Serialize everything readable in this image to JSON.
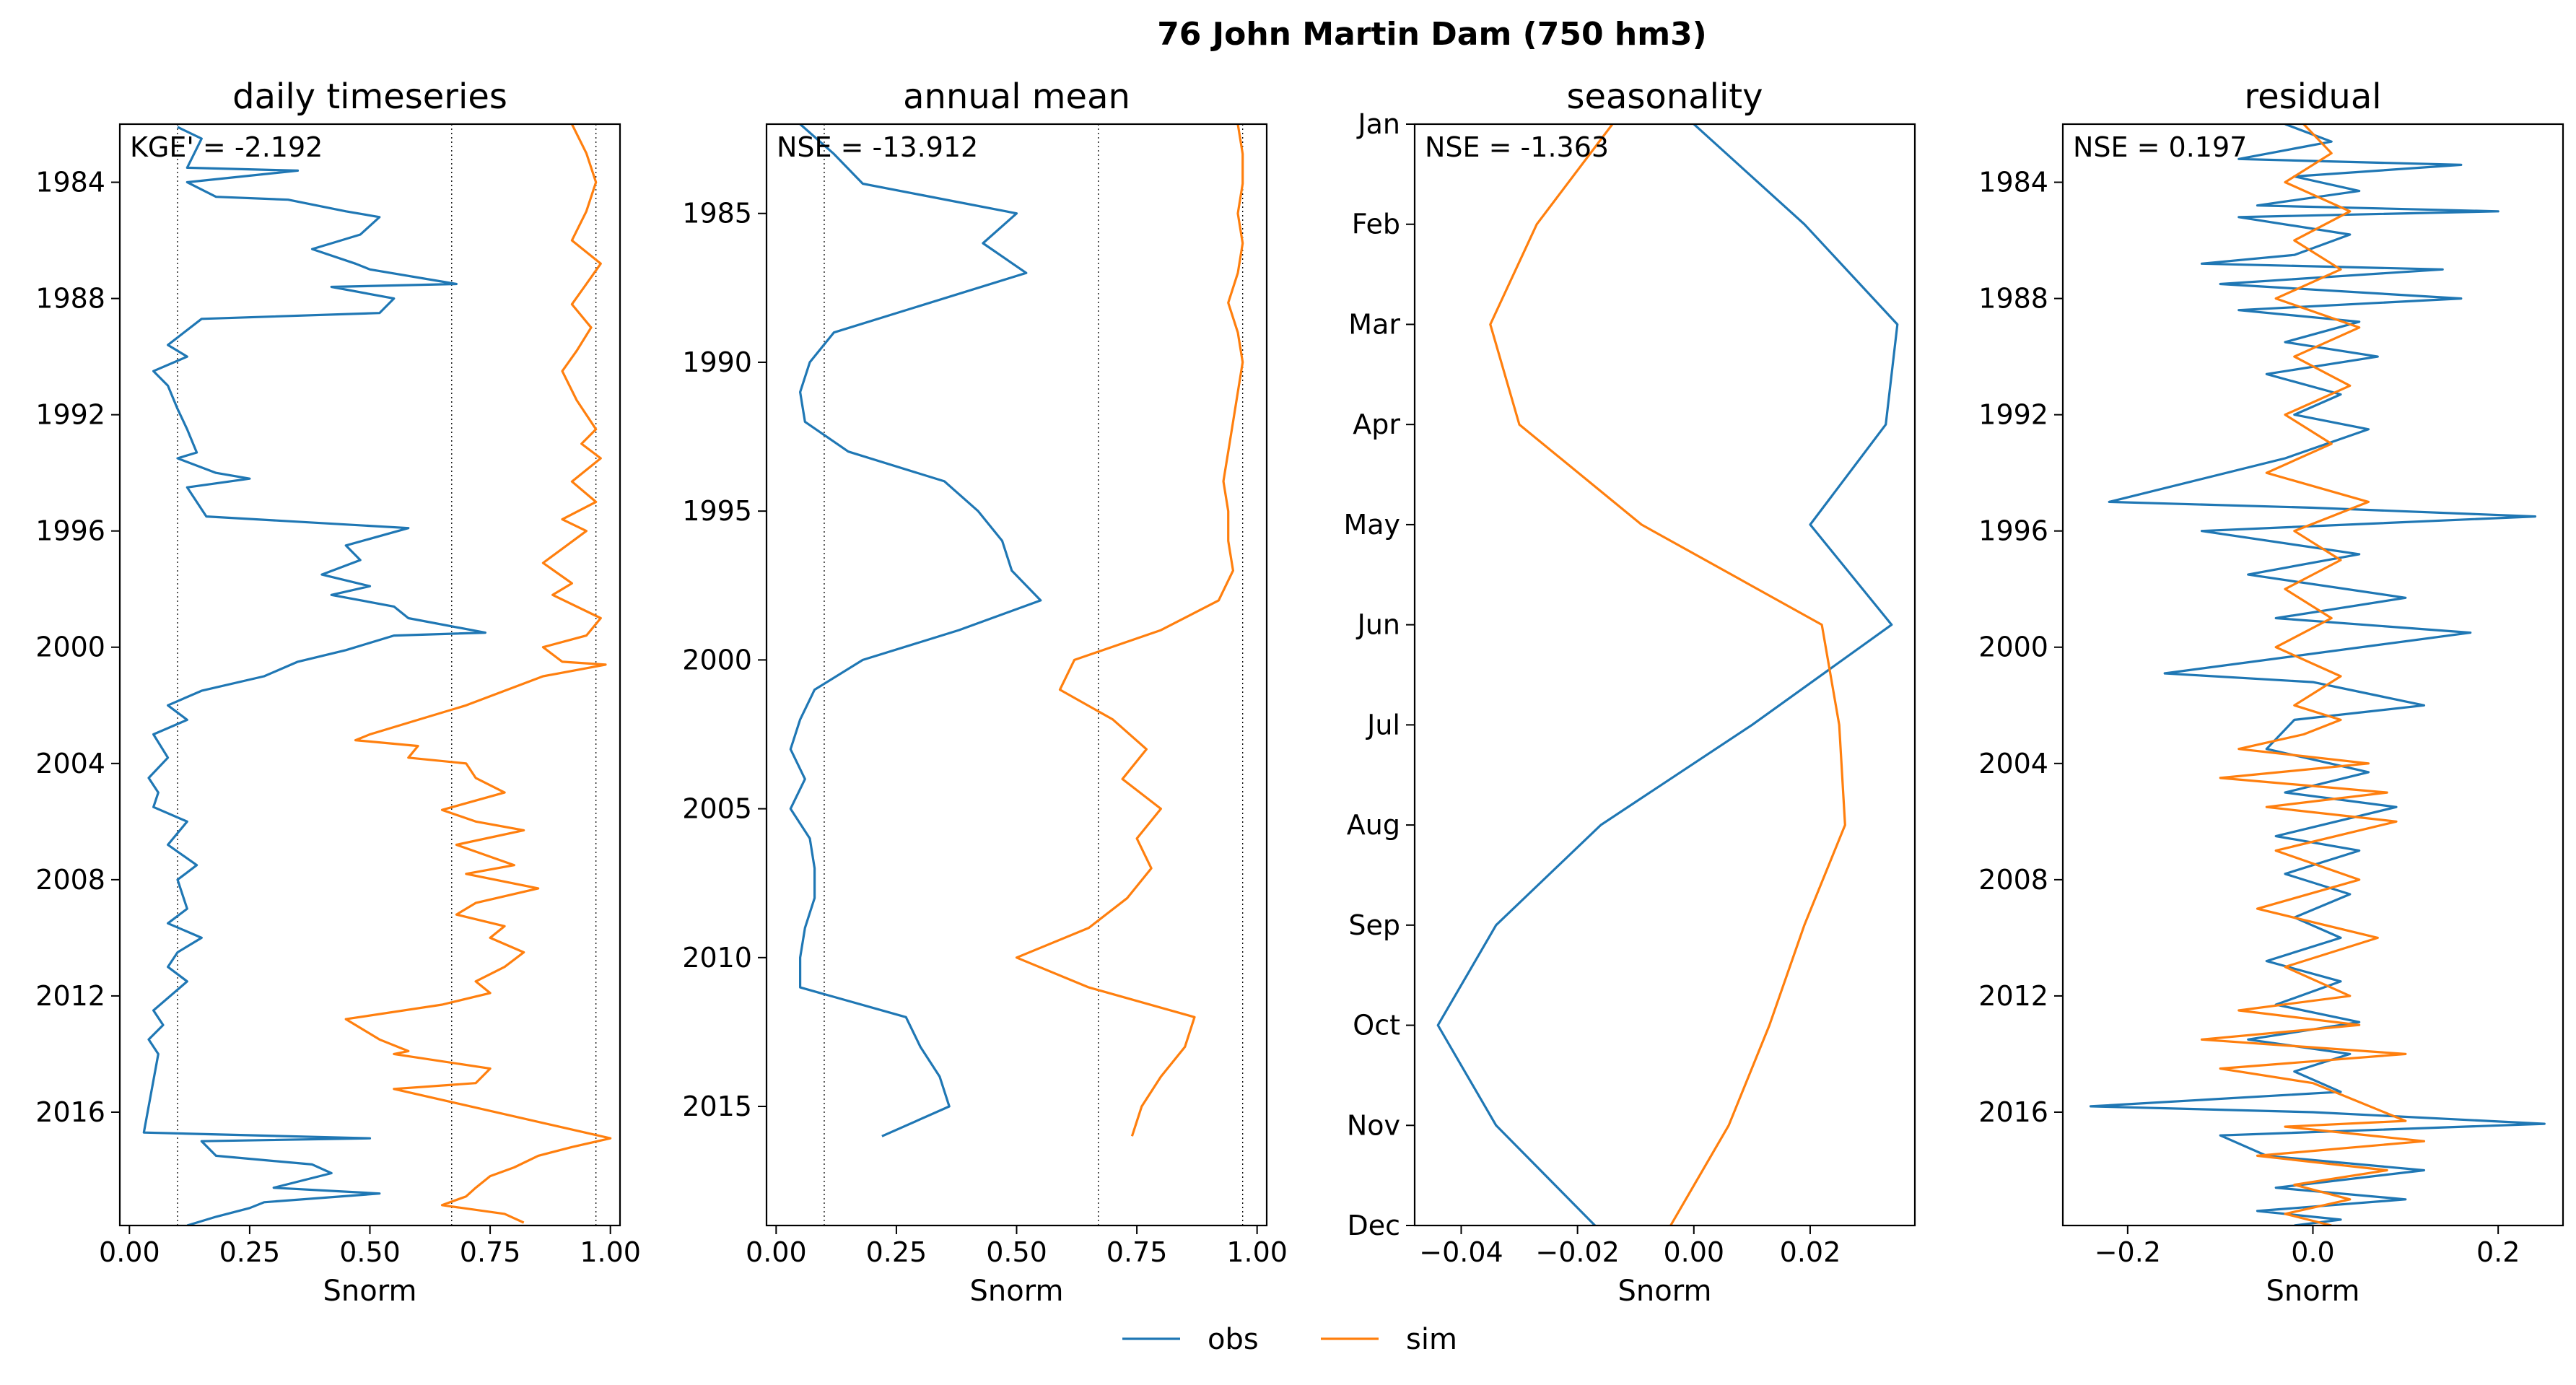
{
  "figure": {
    "suptitle": "76  John Martin Dam (750 hm3)"
  },
  "colors": {
    "obs": "#1f77b4",
    "sim": "#ff7f0e"
  },
  "legend": {
    "placement": "bottom-center",
    "entries": [
      {
        "label": "obs",
        "color": "#1f77b4"
      },
      {
        "label": "sim",
        "color": "#ff7f0e"
      }
    ]
  },
  "chart_data": [
    {
      "type": "line",
      "title": "daily timeseries",
      "xlabel": "Snorm",
      "annotation": "KGE' = -2.192",
      "xlim": [
        -0.02,
        1.02
      ],
      "ylim": [
        1982.0,
        2019.9
      ],
      "y_reversed": true,
      "xticks": [
        0.0,
        0.25,
        0.5,
        0.75,
        1.0
      ],
      "xtick_labels": [
        "0.00",
        "0.25",
        "0.50",
        "0.75",
        "1.00"
      ],
      "yticks": [
        1984,
        1988,
        1992,
        1996,
        2000,
        2004,
        2008,
        2012,
        2016
      ],
      "ytick_labels": [
        "1984",
        "1988",
        "1992",
        "1996",
        "2000",
        "2004",
        "2008",
        "2012",
        "2016"
      ],
      "vlines": [
        0.1,
        0.67,
        0.97
      ],
      "series": [
        {
          "name": "obs",
          "color": "#1f77b4",
          "x": [
            0.1,
            0.15,
            0.12,
            0.35,
            0.12,
            0.18,
            0.33,
            0.45,
            0.52,
            0.48,
            0.42,
            0.38,
            0.47,
            0.5,
            0.68,
            0.42,
            0.55,
            0.52,
            0.15,
            0.08,
            0.12,
            0.05,
            0.08,
            0.1,
            0.12,
            0.14,
            0.1,
            0.18,
            0.25,
            0.12,
            0.16,
            0.58,
            0.45,
            0.48,
            0.4,
            0.5,
            0.42,
            0.55,
            0.58,
            0.74,
            0.55,
            0.45,
            0.35,
            0.28,
            0.15,
            0.08,
            0.12,
            0.05,
            0.08,
            0.04,
            0.06,
            0.05,
            0.12,
            0.08,
            0.14,
            0.1,
            0.12,
            0.08,
            0.15,
            0.1,
            0.08,
            0.12,
            0.05,
            0.07,
            0.04,
            0.06,
            0.03,
            0.5,
            0.15,
            0.18,
            0.38,
            0.42,
            0.3,
            0.52,
            0.28,
            0.25,
            0.18,
            0.12
          ],
          "y": [
            1982.1,
            1982.5,
            1983.5,
            1983.6,
            1984.0,
            1984.5,
            1984.6,
            1985.0,
            1985.2,
            1985.8,
            1986.1,
            1986.3,
            1986.8,
            1987.0,
            1987.5,
            1987.6,
            1988.0,
            1988.5,
            1988.7,
            1989.6,
            1990.0,
            1990.5,
            1991.0,
            1991.8,
            1992.5,
            1993.3,
            1993.5,
            1994.0,
            1994.2,
            1994.5,
            1995.5,
            1995.9,
            1996.5,
            1997.0,
            1997.5,
            1997.9,
            1998.2,
            1998.6,
            1999.0,
            1999.5,
            1999.6,
            2000.1,
            2000.5,
            2001.0,
            2001.5,
            2002.0,
            2002.5,
            2003.0,
            2003.8,
            2004.5,
            2005.0,
            2005.5,
            2006.0,
            2006.8,
            2007.5,
            2008.0,
            2009.0,
            2009.5,
            2010.0,
            2010.5,
            2011.0,
            2011.5,
            2012.5,
            2013.0,
            2013.5,
            2014.0,
            2016.7,
            2016.9,
            2017.0,
            2017.5,
            2017.8,
            2018.1,
            2018.6,
            2018.8,
            2019.1,
            2019.3,
            2019.6,
            2019.9
          ]
        },
        {
          "name": "sim",
          "color": "#ff7f0e",
          "x": [
            0.92,
            0.95,
            0.97,
            0.95,
            0.92,
            0.98,
            0.95,
            0.92,
            0.96,
            0.93,
            0.9,
            0.93,
            0.97,
            0.94,
            0.98,
            0.92,
            0.97,
            0.9,
            0.95,
            0.86,
            0.92,
            0.88,
            0.98,
            0.95,
            0.86,
            0.9,
            0.99,
            0.86,
            0.78,
            0.7,
            0.6,
            0.5,
            0.47,
            0.6,
            0.58,
            0.7,
            0.72,
            0.78,
            0.65,
            0.72,
            0.82,
            0.68,
            0.8,
            0.7,
            0.85,
            0.72,
            0.68,
            0.78,
            0.75,
            0.82,
            0.78,
            0.72,
            0.75,
            0.65,
            0.45,
            0.52,
            0.58,
            0.55,
            0.75,
            0.72,
            0.55,
            1.0,
            0.92,
            0.85,
            0.8,
            0.75,
            0.72,
            0.7,
            0.65,
            0.78,
            0.82
          ],
          "y": [
            1982.0,
            1983.0,
            1984.0,
            1985.0,
            1986.0,
            1986.8,
            1987.5,
            1988.2,
            1989.0,
            1989.8,
            1990.5,
            1991.5,
            1992.5,
            1993.0,
            1993.5,
            1994.3,
            1995.0,
            1995.6,
            1996.0,
            1997.1,
            1997.8,
            1998.2,
            1999.0,
            1999.6,
            2000.0,
            2000.5,
            2000.6,
            2001.0,
            2001.5,
            2002.0,
            2002.5,
            2003.0,
            2003.2,
            2003.4,
            2003.8,
            2004.0,
            2004.5,
            2005.0,
            2005.6,
            2006.0,
            2006.3,
            2006.8,
            2007.5,
            2007.8,
            2008.3,
            2008.8,
            2009.2,
            2009.6,
            2010.0,
            2010.5,
            2011.0,
            2011.5,
            2011.9,
            2012.3,
            2012.8,
            2013.5,
            2013.9,
            2014.0,
            2014.5,
            2015.0,
            2015.2,
            2016.9,
            2017.2,
            2017.5,
            2017.9,
            2018.2,
            2018.6,
            2018.9,
            2019.2,
            2019.5,
            2019.8
          ]
        }
      ]
    },
    {
      "type": "line",
      "title": "annual mean",
      "xlabel": "Snorm",
      "annotation": "NSE = -13.912",
      "xlim": [
        -0.02,
        1.02
      ],
      "ylim": [
        1982.0,
        2019.0
      ],
      "y_reversed": true,
      "xticks": [
        0.0,
        0.25,
        0.5,
        0.75,
        1.0
      ],
      "xtick_labels": [
        "0.00",
        "0.25",
        "0.50",
        "0.75",
        "1.00"
      ],
      "yticks": [
        1985,
        1990,
        1995,
        2000,
        2005,
        2010,
        2015
      ],
      "ytick_labels": [
        "1985",
        "1990",
        "1995",
        "2000",
        "2005",
        "2010",
        "2015"
      ],
      "vlines": [
        0.1,
        0.67,
        0.97
      ],
      "series": [
        {
          "name": "obs",
          "color": "#1f77b4",
          "x": [
            0.05,
            0.12,
            0.18,
            0.5,
            0.43,
            0.52,
            0.12,
            0.07,
            0.05,
            0.06,
            0.15,
            0.35,
            0.42,
            0.47,
            0.49,
            0.55,
            0.38,
            0.18,
            0.08,
            0.05,
            0.03,
            0.06,
            0.03,
            0.07,
            0.08,
            0.08,
            0.06,
            0.05,
            0.05,
            0.27,
            0.3,
            0.34,
            0.36,
            0.22
          ],
          "y": [
            1982.0,
            1983.0,
            1984.0,
            1985.0,
            1986.0,
            1987.0,
            1989.0,
            1990.0,
            1991.0,
            1992.0,
            1993.0,
            1994.0,
            1995.0,
            1996.0,
            1997.0,
            1998.0,
            1999.0,
            2000.0,
            2001.0,
            2002.0,
            2003.0,
            2004.0,
            2005.0,
            2006.0,
            2007.0,
            2008.0,
            2009.0,
            2010.0,
            2011.0,
            2012.0,
            2013.0,
            2014.0,
            2015.0,
            2016.0
          ]
        },
        {
          "name": "sim",
          "color": "#ff7f0e",
          "x": [
            0.96,
            0.97,
            0.97,
            0.96,
            0.97,
            0.96,
            0.94,
            0.96,
            0.97,
            0.96,
            0.95,
            0.94,
            0.93,
            0.94,
            0.94,
            0.95,
            0.92,
            0.8,
            0.62,
            0.59,
            0.7,
            0.77,
            0.72,
            0.8,
            0.75,
            0.78,
            0.73,
            0.65,
            0.5,
            0.65,
            0.87,
            0.85,
            0.8,
            0.76,
            0.74
          ],
          "y": [
            1982.0,
            1983.0,
            1984.0,
            1985.0,
            1986.0,
            1987.0,
            1988.0,
            1989.0,
            1990.0,
            1991.0,
            1992.0,
            1993.0,
            1994.0,
            1995.0,
            1996.0,
            1997.0,
            1998.0,
            1999.0,
            2000.0,
            2001.0,
            2002.0,
            2003.0,
            2004.0,
            2005.0,
            2006.0,
            2007.0,
            2008.0,
            2009.0,
            2010.0,
            2011.0,
            2012.0,
            2013.0,
            2014.0,
            2015.0,
            2016.0
          ]
        }
      ]
    },
    {
      "type": "line",
      "title": "seasonality",
      "xlabel": "Snorm",
      "annotation": "NSE = -1.363",
      "xlim": [
        -0.048,
        0.038
      ],
      "ylim": [
        1,
        12
      ],
      "y_reversed": true,
      "xticks": [
        -0.04,
        -0.02,
        0.0,
        0.02
      ],
      "xtick_labels": [
        "−0.04",
        "−0.02",
        "0.00",
        "0.02"
      ],
      "yticks": [
        1,
        2,
        3,
        4,
        5,
        6,
        7,
        8,
        9,
        10,
        11,
        12
      ],
      "ytick_labels": [
        "Jan",
        "Feb",
        "Mar",
        "Apr",
        "May",
        "Jun",
        "Jul",
        "Aug",
        "Sep",
        "Oct",
        "Nov",
        "Dec"
      ],
      "vlines": [],
      "series": [
        {
          "name": "obs",
          "color": "#1f77b4",
          "x": [
            0.0,
            0.019,
            0.035,
            0.033,
            0.02,
            0.034,
            0.01,
            -0.016,
            -0.034,
            -0.044,
            -0.034,
            -0.017
          ],
          "y": [
            1,
            2,
            3,
            4,
            5,
            6,
            7,
            8,
            9,
            10,
            11,
            12
          ]
        },
        {
          "name": "sim",
          "color": "#ff7f0e",
          "x": [
            -0.014,
            -0.027,
            -0.035,
            -0.03,
            -0.009,
            0.022,
            0.025,
            0.026,
            0.019,
            0.013,
            0.006,
            -0.004
          ],
          "y": [
            1,
            2,
            3,
            4,
            5,
            6,
            7,
            8,
            9,
            10,
            11,
            12
          ]
        }
      ]
    },
    {
      "type": "line",
      "title": "residual",
      "xlabel": "Snorm",
      "annotation": "NSE = 0.197",
      "xlim": [
        -0.27,
        0.27
      ],
      "ylim": [
        1982.0,
        2019.9
      ],
      "y_reversed": true,
      "xticks": [
        -0.2,
        0.0,
        0.2
      ],
      "xtick_labels": [
        "−0.2",
        "0.0",
        "0.2"
      ],
      "yticks": [
        1984,
        1988,
        1992,
        1996,
        2000,
        2004,
        2008,
        2012,
        2016
      ],
      "ytick_labels": [
        "1984",
        "1988",
        "1992",
        "1996",
        "2000",
        "2004",
        "2008",
        "2012",
        "2016"
      ],
      "vlines": [],
      "series": [
        {
          "name": "obs",
          "color": "#1f77b4",
          "x": [
            -0.03,
            0.02,
            -0.08,
            0.16,
            -0.02,
            0.05,
            -0.06,
            0.2,
            -0.08,
            0.04,
            -0.02,
            -0.12,
            0.14,
            -0.1,
            0.16,
            -0.08,
            0.05,
            -0.03,
            0.07,
            -0.05,
            0.03,
            -0.02,
            0.06,
            -0.03,
            -0.22,
            0.0,
            0.24,
            -0.12,
            0.05,
            -0.07,
            0.1,
            -0.04,
            0.17,
            -0.16,
            0.0,
            0.12,
            -0.02,
            -0.05,
            0.06,
            -0.03,
            0.09,
            -0.04,
            0.05,
            -0.03,
            0.04,
            -0.02,
            0.03,
            -0.05,
            0.03,
            -0.04,
            0.05,
            -0.07,
            0.04,
            -0.02,
            0.03,
            -0.24,
            0.0,
            0.25,
            -0.1,
            -0.05,
            0.12,
            -0.04,
            0.1,
            -0.06,
            0.03,
            -0.02
          ],
          "y": [
            1982.0,
            1982.6,
            1983.2,
            1983.4,
            1983.8,
            1984.3,
            1984.8,
            1985.0,
            1985.2,
            1985.8,
            1986.5,
            1986.8,
            1987.0,
            1987.5,
            1988.0,
            1988.4,
            1988.8,
            1989.5,
            1990.0,
            1990.6,
            1991.3,
            1992.0,
            1992.5,
            1993.5,
            1995.0,
            1995.2,
            1995.5,
            1996.0,
            1996.8,
            1997.5,
            1998.3,
            1999.0,
            1999.5,
            2000.9,
            2001.2,
            2002.0,
            2002.5,
            2003.5,
            2004.3,
            2005.0,
            2005.5,
            2006.5,
            2007.0,
            2007.8,
            2008.5,
            2009.3,
            2010.0,
            2010.8,
            2011.5,
            2012.3,
            2012.9,
            2013.5,
            2014.0,
            2014.6,
            2015.3,
            2015.8,
            2016.0,
            2016.4,
            2016.8,
            2017.5,
            2018.0,
            2018.6,
            2019.0,
            2019.4,
            2019.7,
            2019.9
          ]
        },
        {
          "name": "sim",
          "color": "#ff7f0e",
          "x": [
            -0.01,
            0.02,
            -0.03,
            0.04,
            -0.02,
            0.03,
            -0.04,
            0.05,
            -0.02,
            0.04,
            -0.03,
            0.02,
            -0.05,
            0.06,
            -0.02,
            0.03,
            -0.03,
            0.02,
            -0.04,
            0.03,
            -0.02,
            0.03,
            -0.01,
            -0.08,
            0.06,
            -0.1,
            0.08,
            -0.05,
            0.09,
            -0.04,
            0.05,
            -0.06,
            0.07,
            -0.03,
            0.04,
            -0.08,
            0.05,
            -0.12,
            0.1,
            -0.1,
            0.0,
            0.1,
            -0.03,
            0.12,
            -0.06,
            0.08,
            -0.02,
            0.04,
            -0.03,
            0.02
          ],
          "y": [
            1982.0,
            1983.0,
            1984.0,
            1985.0,
            1986.0,
            1987.0,
            1988.0,
            1989.0,
            1990.0,
            1991.0,
            1992.0,
            1993.0,
            1994.0,
            1995.0,
            1996.0,
            1997.0,
            1998.0,
            1999.0,
            2000.0,
            2001.0,
            2002.0,
            2002.5,
            2003.0,
            2003.5,
            2004.0,
            2004.5,
            2005.0,
            2005.5,
            2006.0,
            2007.0,
            2008.0,
            2009.0,
            2010.0,
            2011.0,
            2012.0,
            2012.5,
            2013.0,
            2013.5,
            2014.0,
            2014.5,
            2015.0,
            2016.3,
            2016.5,
            2017.0,
            2017.5,
            2018.0,
            2018.5,
            2019.0,
            2019.5,
            2019.9
          ]
        }
      ]
    }
  ]
}
